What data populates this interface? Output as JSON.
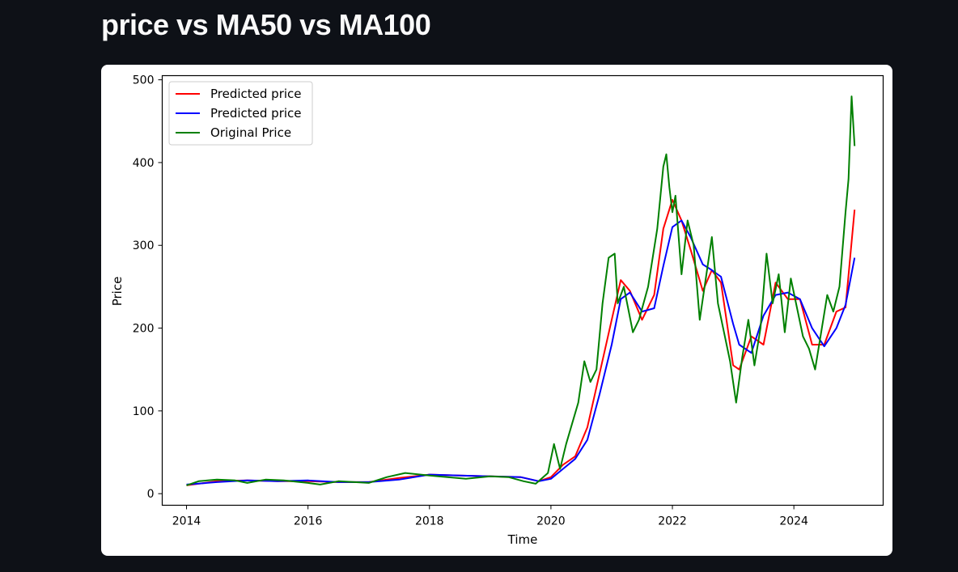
{
  "page": {
    "title": "price vs MA50 vs MA100"
  },
  "chart_data": {
    "type": "line",
    "title": "",
    "xlabel": "Time",
    "ylabel": "Price",
    "xlim": [
      2013.6,
      2025.47
    ],
    "ylim": [
      -14,
      505
    ],
    "x_ticks": [
      2014,
      2016,
      2018,
      2020,
      2022,
      2024
    ],
    "y_ticks": [
      0,
      100,
      200,
      300,
      400,
      500
    ],
    "grid": false,
    "legend_position": "upper-left",
    "series": [
      {
        "name": "Predicted price",
        "color": "#ff0000",
        "x": [
          2014.0,
          2014.5,
          2015.0,
          2015.5,
          2016.0,
          2016.5,
          2017.0,
          2017.5,
          2018.0,
          2018.5,
          2019.0,
          2019.5,
          2019.8,
          2020.0,
          2020.2,
          2020.4,
          2020.6,
          2020.8,
          2021.0,
          2021.15,
          2021.3,
          2021.5,
          2021.7,
          2021.85,
          2022.0,
          2022.15,
          2022.3,
          2022.5,
          2022.65,
          2022.8,
          2023.0,
          2023.1,
          2023.3,
          2023.5,
          2023.7,
          2023.9,
          2024.1,
          2024.3,
          2024.5,
          2024.7,
          2024.85,
          2025.0
        ],
        "y": [
          10,
          15,
          16,
          15,
          15,
          14,
          14,
          19,
          23,
          22,
          21,
          20,
          15,
          20,
          35,
          45,
          80,
          145,
          210,
          258,
          245,
          210,
          240,
          320,
          355,
          330,
          295,
          245,
          270,
          255,
          155,
          150,
          190,
          180,
          255,
          235,
          235,
          180,
          180,
          220,
          225,
          343
        ]
      },
      {
        "name": "Predicted price",
        "color": "#0000ff",
        "x": [
          2014.0,
          2014.5,
          2015.0,
          2015.5,
          2016.0,
          2016.5,
          2017.0,
          2017.5,
          2018.0,
          2018.5,
          2019.0,
          2019.5,
          2019.8,
          2020.0,
          2020.2,
          2020.4,
          2020.6,
          2020.8,
          2021.0,
          2021.15,
          2021.3,
          2021.5,
          2021.7,
          2021.85,
          2022.0,
          2022.15,
          2022.3,
          2022.5,
          2022.65,
          2022.8,
          2023.0,
          2023.1,
          2023.3,
          2023.5,
          2023.7,
          2023.9,
          2024.1,
          2024.3,
          2024.5,
          2024.7,
          2024.85,
          2025.0
        ],
        "y": [
          11,
          14,
          16,
          15,
          16,
          14,
          14,
          17,
          23,
          22,
          21,
          20,
          15,
          18,
          30,
          42,
          65,
          120,
          180,
          235,
          243,
          220,
          224,
          275,
          322,
          330,
          310,
          277,
          270,
          262,
          205,
          180,
          170,
          215,
          240,
          243,
          235,
          200,
          178,
          200,
          228,
          285
        ]
      },
      {
        "name": "Original Price",
        "color": "#008000",
        "x": [
          2014.0,
          2014.2,
          2014.5,
          2014.8,
          2015.0,
          2015.3,
          2015.6,
          2016.0,
          2016.2,
          2016.5,
          2017.0,
          2017.3,
          2017.6,
          2018.0,
          2018.3,
          2018.6,
          2019.0,
          2019.3,
          2019.55,
          2019.75,
          2019.95,
          2020.05,
          2020.1,
          2020.15,
          2020.25,
          2020.35,
          2020.45,
          2020.55,
          2020.65,
          2020.75,
          2020.85,
          2020.95,
          2021.05,
          2021.1,
          2021.2,
          2021.35,
          2021.45,
          2021.6,
          2021.75,
          2021.85,
          2021.9,
          2021.95,
          2022.0,
          2022.05,
          2022.15,
          2022.25,
          2022.35,
          2022.45,
          2022.55,
          2022.65,
          2022.75,
          2022.85,
          2022.95,
          2023.05,
          2023.15,
          2023.25,
          2023.35,
          2023.45,
          2023.55,
          2023.65,
          2023.75,
          2023.85,
          2023.95,
          2024.05,
          2024.15,
          2024.25,
          2024.35,
          2024.45,
          2024.55,
          2024.65,
          2024.75,
          2024.85,
          2024.9,
          2024.95,
          2025.0
        ],
        "y": [
          10,
          15,
          17,
          16,
          13,
          17,
          16,
          13,
          11,
          15,
          13,
          20,
          25,
          22,
          20,
          18,
          21,
          20,
          15,
          12,
          25,
          60,
          45,
          30,
          60,
          85,
          110,
          160,
          135,
          150,
          230,
          285,
          290,
          230,
          250,
          195,
          210,
          250,
          320,
          395,
          410,
          370,
          340,
          360,
          265,
          330,
          300,
          210,
          260,
          310,
          230,
          195,
          160,
          110,
          165,
          210,
          155,
          200,
          290,
          230,
          265,
          195,
          260,
          225,
          190,
          175,
          150,
          195,
          240,
          220,
          250,
          340,
          380,
          480,
          420
        ]
      }
    ]
  }
}
